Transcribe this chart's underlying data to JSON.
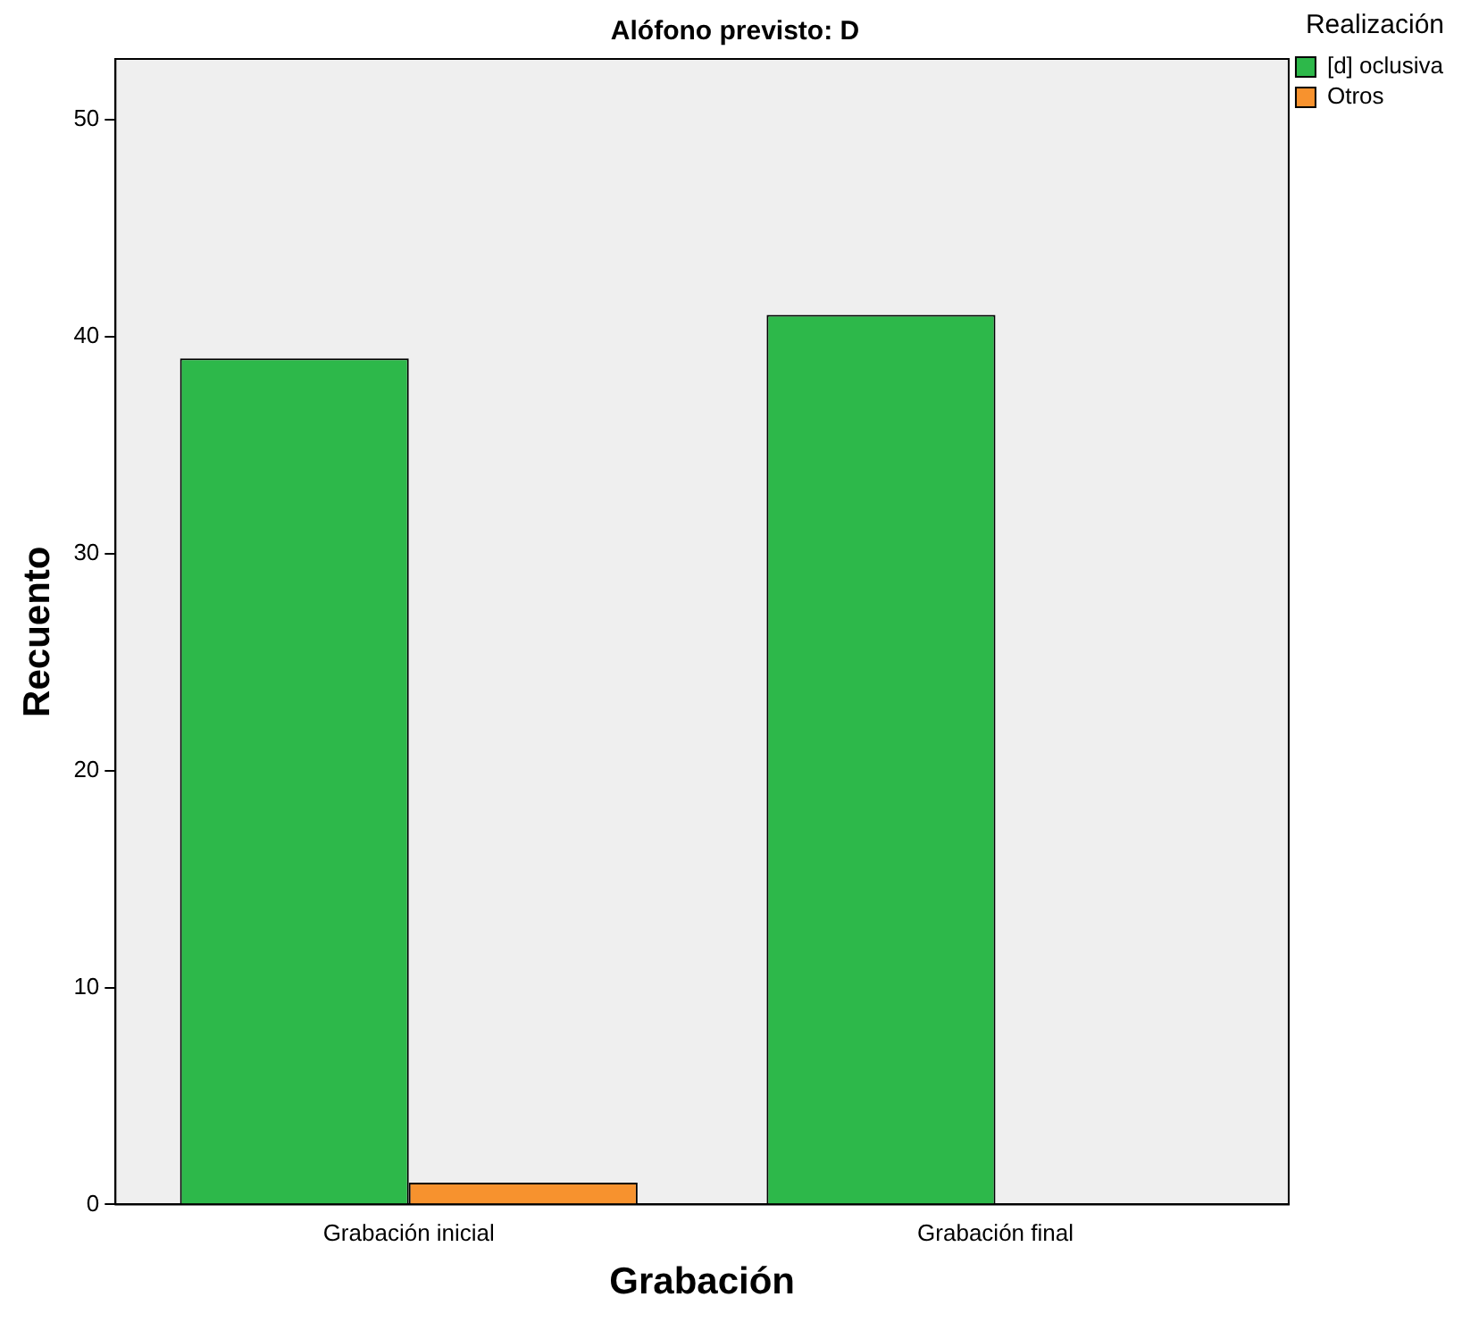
{
  "chart_data": {
    "type": "bar",
    "title": "Alófono previsto: D",
    "xlabel": "Grabación",
    "ylabel": "Recuento",
    "legend_title": "Realización",
    "categories": [
      "Grabación inicial",
      "Grabación final"
    ],
    "series": [
      {
        "name": "[d] oclusiva",
        "color": "#2db84a",
        "values": [
          39,
          41
        ]
      },
      {
        "name": "Otros",
        "color": "#f7922e",
        "values": [
          1,
          0
        ]
      }
    ],
    "ylim": [
      0,
      52.8
    ],
    "yticks": [
      0,
      10,
      20,
      30,
      40,
      50
    ],
    "grid": false,
    "legend": "right"
  }
}
